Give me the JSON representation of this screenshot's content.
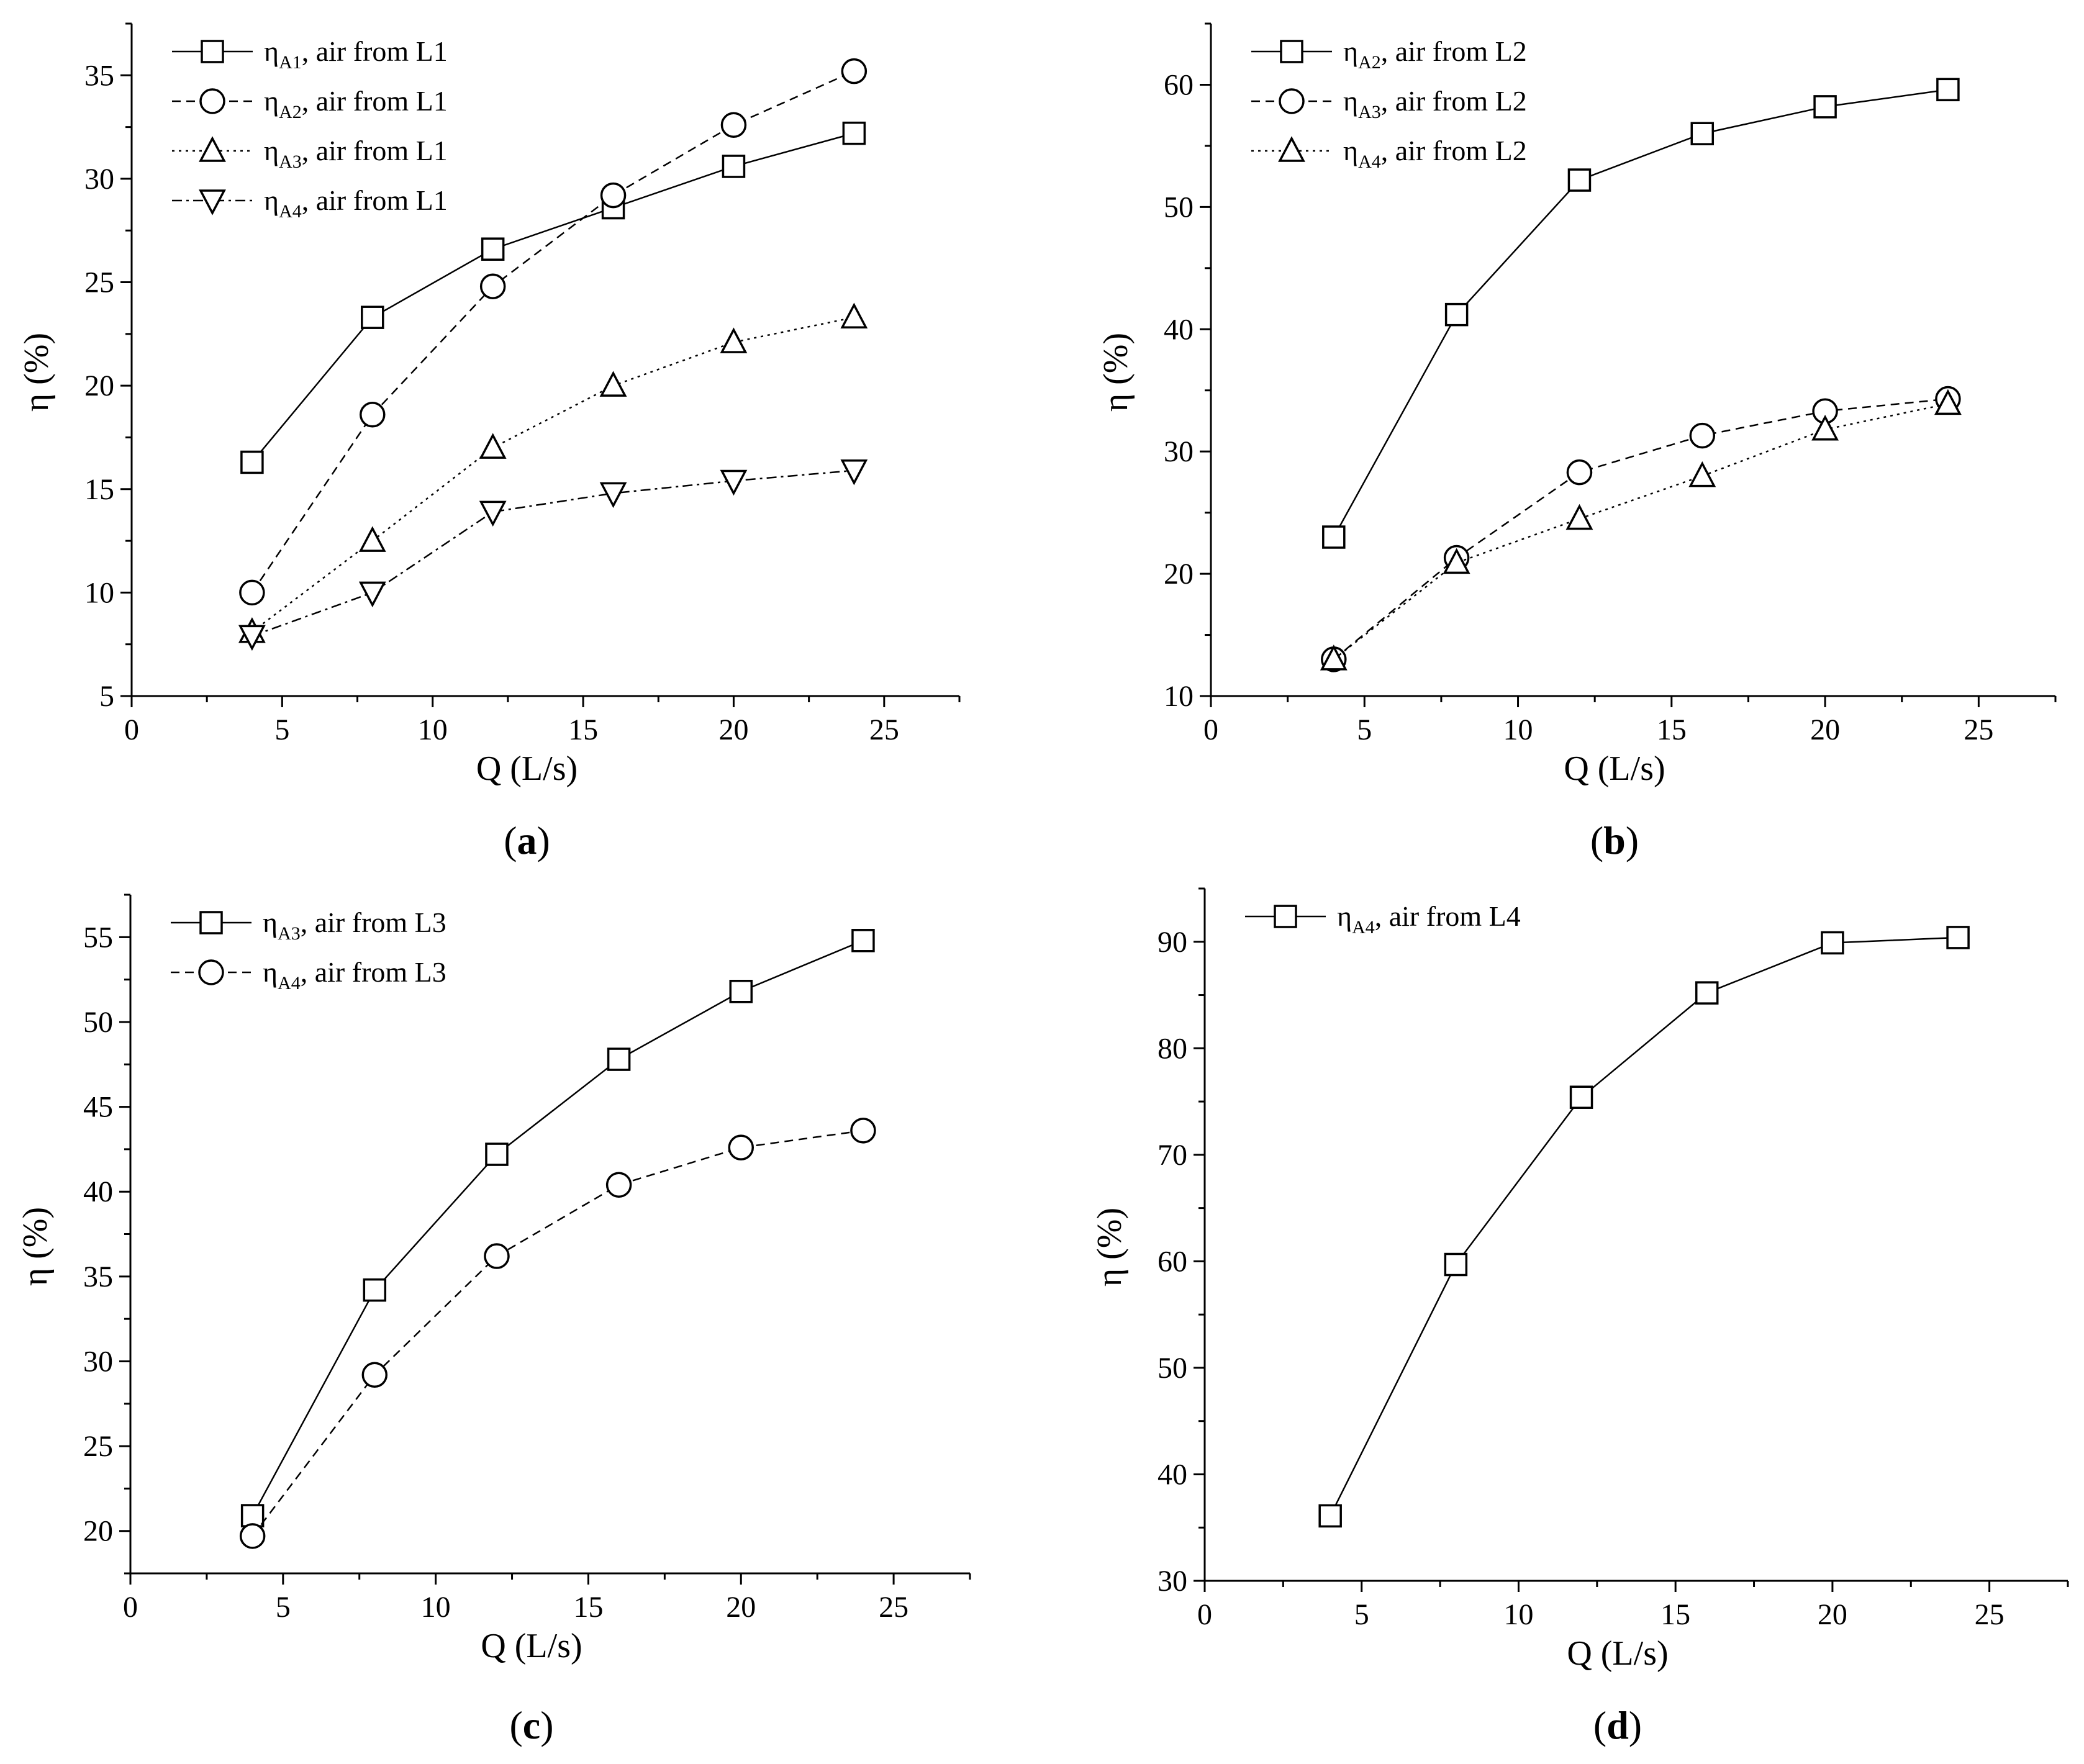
{
  "chart_data": [
    {
      "type": "line",
      "panel_label": "a",
      "xlabel": "Q (L/s)",
      "ylabel": "η (%)",
      "xlim": [
        0,
        27.5
      ],
      "ylim": [
        5,
        37.5
      ],
      "xticks": [
        0,
        5,
        10,
        15,
        20,
        25
      ],
      "yticks": [
        5,
        10,
        15,
        20,
        25,
        30,
        35
      ],
      "legend_position": "top-left",
      "grid": false,
      "x": [
        4,
        8,
        12,
        16,
        20,
        24
      ],
      "series": [
        {
          "name_main": "η",
          "name_sub": "A1",
          "name_rest": ", air from L1",
          "marker": "square",
          "dash": "solid",
          "values": [
            16.3,
            23.3,
            26.6,
            28.6,
            30.6,
            32.2
          ]
        },
        {
          "name_main": "η",
          "name_sub": "A2",
          "name_rest": ", air from L1",
          "marker": "circle",
          "dash": "dashed",
          "values": [
            10.0,
            18.6,
            24.8,
            29.2,
            32.6,
            35.2
          ]
        },
        {
          "name_main": "η",
          "name_sub": "A3",
          "name_rest": ", air from L1",
          "marker": "triangle-up",
          "dash": "dotted",
          "values": [
            8.1,
            12.5,
            17.0,
            20.0,
            22.1,
            23.3
          ]
        },
        {
          "name_main": "η",
          "name_sub": "A4",
          "name_rest": ", air from L1",
          "marker": "triangle-down",
          "dash": "dashdot",
          "values": [
            7.9,
            10.0,
            13.9,
            14.8,
            15.4,
            15.9
          ]
        }
      ]
    },
    {
      "type": "line",
      "panel_label": "b",
      "xlabel": "Q (L/s)",
      "ylabel": "η (%)",
      "xlim": [
        0,
        27.5
      ],
      "ylim": [
        10,
        65
      ],
      "xticks": [
        0,
        5,
        10,
        15,
        20,
        25
      ],
      "yticks": [
        10,
        20,
        30,
        40,
        50,
        60
      ],
      "legend_position": "top-left",
      "grid": false,
      "x": [
        4,
        8,
        12,
        16,
        20,
        24
      ],
      "series": [
        {
          "name_main": "η",
          "name_sub": "A2",
          "name_rest": ", air from L2",
          "marker": "square",
          "dash": "solid",
          "values": [
            23.0,
            41.2,
            52.2,
            56.0,
            58.2,
            59.6
          ]
        },
        {
          "name_main": "η",
          "name_sub": "A3",
          "name_rest": ", air from L2",
          "marker": "circle",
          "dash": "dashed",
          "values": [
            13.0,
            21.3,
            28.3,
            31.3,
            33.3,
            34.3
          ]
        },
        {
          "name_main": "η",
          "name_sub": "A4",
          "name_rest": ", air from L2",
          "marker": "triangle-up",
          "dash": "dotted",
          "values": [
            13.0,
            20.9,
            24.5,
            28.0,
            31.8,
            33.9
          ]
        }
      ]
    },
    {
      "type": "line",
      "panel_label": "c",
      "xlabel": "Q (L/s)",
      "ylabel": "η (%)",
      "xlim": [
        0,
        27.5
      ],
      "ylim": [
        17.5,
        57.5
      ],
      "xticks": [
        0,
        5,
        10,
        15,
        20,
        25
      ],
      "yticks": [
        20,
        25,
        30,
        35,
        40,
        45,
        50,
        55
      ],
      "legend_position": "top-left",
      "grid": false,
      "x": [
        4,
        8,
        12,
        16,
        20,
        24
      ],
      "series": [
        {
          "name_main": "η",
          "name_sub": "A3",
          "name_rest": ", air from L3",
          "marker": "square",
          "dash": "solid",
          "values": [
            20.9,
            34.2,
            42.2,
            47.8,
            51.8,
            54.8
          ]
        },
        {
          "name_main": "η",
          "name_sub": "A4",
          "name_rest": ", air from L3",
          "marker": "circle",
          "dash": "dashed",
          "values": [
            19.7,
            29.2,
            36.2,
            40.4,
            42.6,
            43.6
          ]
        }
      ]
    },
    {
      "type": "line",
      "panel_label": "d",
      "xlabel": "Q (L/s)",
      "ylabel": "η (%)",
      "xlim": [
        0,
        27.5
      ],
      "ylim": [
        30,
        95
      ],
      "xticks": [
        0,
        5,
        10,
        15,
        20,
        25
      ],
      "yticks": [
        30,
        40,
        50,
        60,
        70,
        80,
        90
      ],
      "legend_position": "top-left",
      "grid": false,
      "x": [
        4,
        8,
        12,
        16,
        20,
        24
      ],
      "series": [
        {
          "name_main": "η",
          "name_sub": "A4",
          "name_rest": ", air from L4",
          "marker": "square",
          "dash": "solid",
          "values": [
            36.1,
            59.7,
            75.4,
            85.2,
            89.9,
            90.4
          ]
        }
      ]
    }
  ]
}
